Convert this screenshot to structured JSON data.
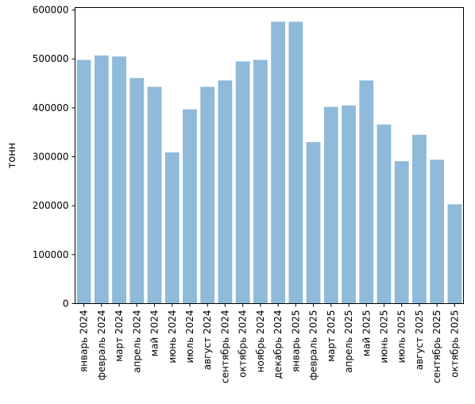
{
  "chart_data": {
    "type": "bar",
    "title": "",
    "xlabel": "",
    "ylabel": "тонн",
    "ylim": [
      0,
      605000
    ],
    "yticks": [
      0,
      100000,
      200000,
      300000,
      400000,
      500000,
      600000
    ],
    "grid": false,
    "bar_color": "#8fbad9",
    "categories": [
      "январь 2024",
      "февраль 2024",
      "март 2024",
      "апрель 2024",
      "май 2024",
      "июнь 2024",
      "июль 2024",
      "август 2024",
      "сентябрь 2024",
      "октябрь 2024",
      "ноябрь 2024",
      "декабрь 2024",
      "январь 2025",
      "февраль 2025",
      "март 2025",
      "апрель 2025",
      "май 2025",
      "июнь 2025",
      "июль 2025",
      "август 2025",
      "сентябрь 2025",
      "октябрь 2025"
    ],
    "values": [
      498000,
      507000,
      505000,
      461000,
      443000,
      309000,
      397000,
      443000,
      456000,
      495000,
      498000,
      576000,
      576000,
      330000,
      402000,
      405000,
      456000,
      366000,
      291000,
      345000,
      294000,
      203000
    ]
  }
}
